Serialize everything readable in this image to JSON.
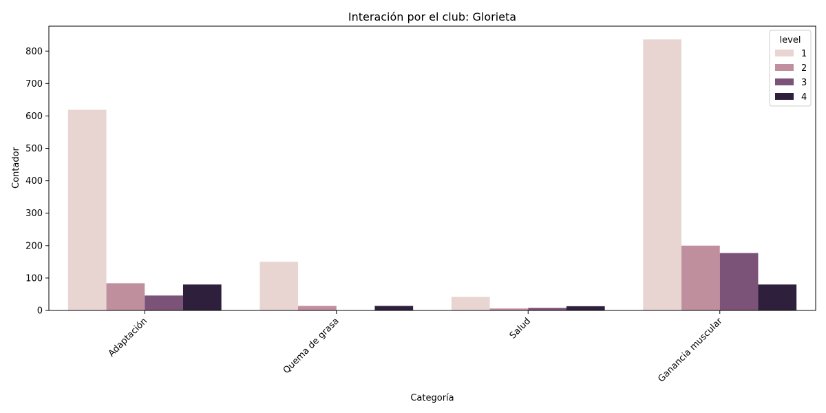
{
  "chart_data": {
    "type": "bar",
    "title": "Interación por el club: Glorieta",
    "xlabel": "Categoría",
    "ylabel": "Contador",
    "categories": [
      "Adaptación",
      "Quema de grasa",
      "Salud",
      "Ganancia muscular"
    ],
    "series": [
      {
        "name": "1",
        "color": "#e8d5d2",
        "values": [
          619,
          150,
          42,
          836
        ]
      },
      {
        "name": "2",
        "color": "#c08f9e",
        "values": [
          84,
          14,
          6,
          200
        ]
      },
      {
        "name": "3",
        "color": "#7b5278",
        "values": [
          46,
          0,
          8,
          177
        ]
      },
      {
        "name": "4",
        "color": "#2e1f3c",
        "values": [
          80,
          14,
          13,
          80
        ]
      }
    ],
    "ylim": [
      0,
      877
    ],
    "yticks": [
      0,
      100,
      200,
      300,
      400,
      500,
      600,
      700,
      800
    ],
    "legend": {
      "title": "level",
      "placement": "top-right"
    },
    "grid": false
  }
}
